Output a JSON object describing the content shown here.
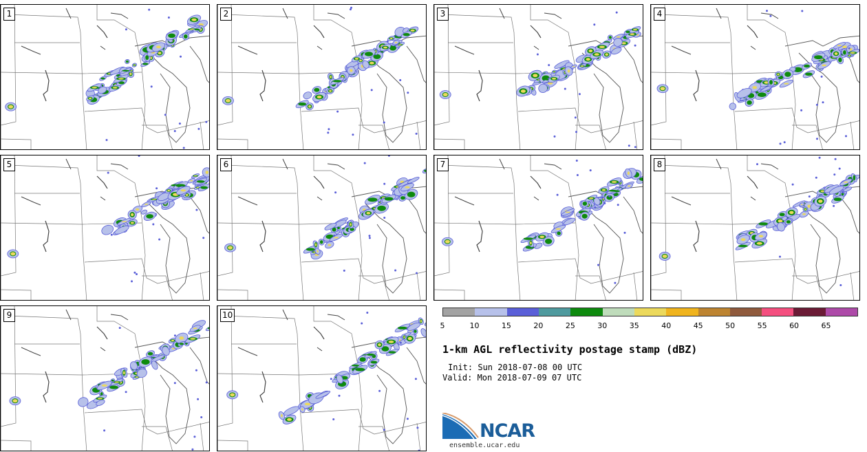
{
  "panels": [
    {
      "label": "1"
    },
    {
      "label": "2"
    },
    {
      "label": "3"
    },
    {
      "label": "4"
    },
    {
      "label": "5"
    },
    {
      "label": "6"
    },
    {
      "label": "7"
    },
    {
      "label": "8"
    },
    {
      "label": "9"
    },
    {
      "label": "10"
    }
  ],
  "colorbar": {
    "colors": [
      "#a3a3a3",
      "#b7c1ea",
      "#5a5fd8",
      "#4f9a9e",
      "#0e8a0e",
      "#bfdcbb",
      "#ecd95c",
      "#f0b41e",
      "#bd8431",
      "#8f5a3d",
      "#f44f7f",
      "#6b1b36",
      "#ad4aa8"
    ],
    "ticks": [
      "5",
      "10",
      "15",
      "20",
      "25",
      "30",
      "35",
      "40",
      "45",
      "50",
      "55",
      "60",
      "65"
    ]
  },
  "title": "1-km AGL reflectivity postage stamp (dBZ)",
  "init": "Init: Sun 2018-07-08 00 UTC",
  "valid": "Valid: Mon 2018-07-09 07 UTC",
  "logo": {
    "text": "NCAR",
    "site": "ensemble.ucar.edu"
  }
}
